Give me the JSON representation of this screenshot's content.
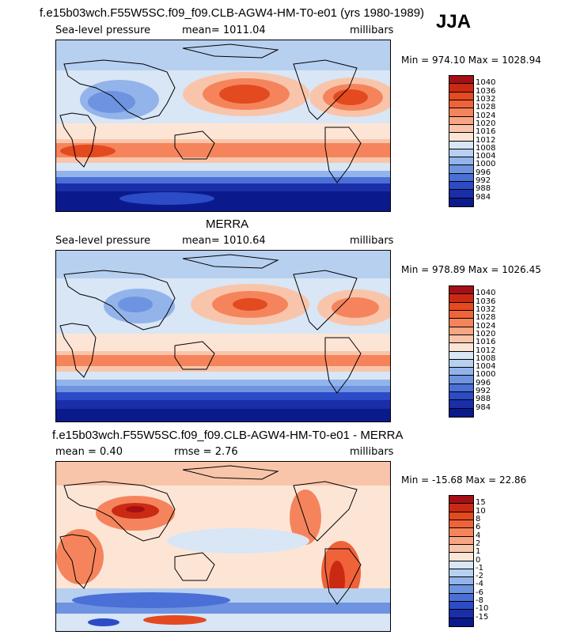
{
  "header": {
    "case_title": "f.e15b03wch.F55W5SC.f09_f09.CLB-AGW4-HM-T0-e01 (yrs 1980-1989)",
    "season": "JJA"
  },
  "chart_data": [
    {
      "type": "heatmap",
      "title": "f.e15b03wch.F55W5SC.f09_f09.CLB-AGW4-HM-T0-e01 (yrs 1980-1989)",
      "left_label": "Sea-level pressure",
      "center_label": "mean= 1011.04",
      "units": "millibars",
      "min_text": "Min = 974.10 Max = 1028.94",
      "min": 974.1,
      "max": 1028.94,
      "colorbar_levels": [
        "1040",
        "1036",
        "1032",
        "1028",
        "1024",
        "1020",
        "1016",
        "1012",
        "1008",
        "1004",
        "1000",
        "996",
        "992",
        "988",
        "984"
      ],
      "colorbar_colors": [
        "#a50f15",
        "#cb2a12",
        "#e34a1f",
        "#f0633a",
        "#f5845c",
        "#f7a583",
        "#f9c5aa",
        "#fde5d6",
        "#d8e6f6",
        "#b7d0f0",
        "#93b4ea",
        "#6e93e1",
        "#4a6fd6",
        "#2c4bc6",
        "#1a2ea8",
        "#0a1a8c"
      ]
    },
    {
      "type": "heatmap",
      "title": "MERRA",
      "left_label": "Sea-level pressure",
      "center_label": "mean= 1010.64",
      "units": "millibars",
      "min_text": "Min = 978.89 Max = 1026.45",
      "min": 978.89,
      "max": 1026.45,
      "colorbar_levels": [
        "1040",
        "1036",
        "1032",
        "1028",
        "1024",
        "1020",
        "1016",
        "1012",
        "1008",
        "1004",
        "1000",
        "996",
        "992",
        "988",
        "984"
      ],
      "colorbar_colors": [
        "#a50f15",
        "#cb2a12",
        "#e34a1f",
        "#f0633a",
        "#f5845c",
        "#f7a583",
        "#f9c5aa",
        "#fde5d6",
        "#d8e6f6",
        "#b7d0f0",
        "#93b4ea",
        "#6e93e1",
        "#4a6fd6",
        "#2c4bc6",
        "#1a2ea8",
        "#0a1a8c"
      ]
    },
    {
      "type": "heatmap",
      "title": "f.e15b03wch.F55W5SC.f09_f09.CLB-AGW4-HM-T0-e01 - MERRA",
      "left_label": "mean =    0.40",
      "center_label": "rmse =    2.76",
      "units": "millibars",
      "min_text": "Min = -15.68 Max =  22.86",
      "min": -15.68,
      "max": 22.86,
      "colorbar_levels": [
        "15",
        "10",
        "8",
        "6",
        "4",
        "2",
        "1",
        "0",
        "-1",
        "-2",
        "-4",
        "-6",
        "-8",
        "-10",
        "-15"
      ],
      "colorbar_colors": [
        "#a50f15",
        "#cb2a12",
        "#e34a1f",
        "#f0633a",
        "#f5845c",
        "#f7a583",
        "#f9c5aa",
        "#fde5d6",
        "#d8e6f6",
        "#b7d0f0",
        "#93b4ea",
        "#6e93e1",
        "#4a6fd6",
        "#2c4bc6",
        "#1a2ea8",
        "#0a1a8c"
      ]
    }
  ]
}
